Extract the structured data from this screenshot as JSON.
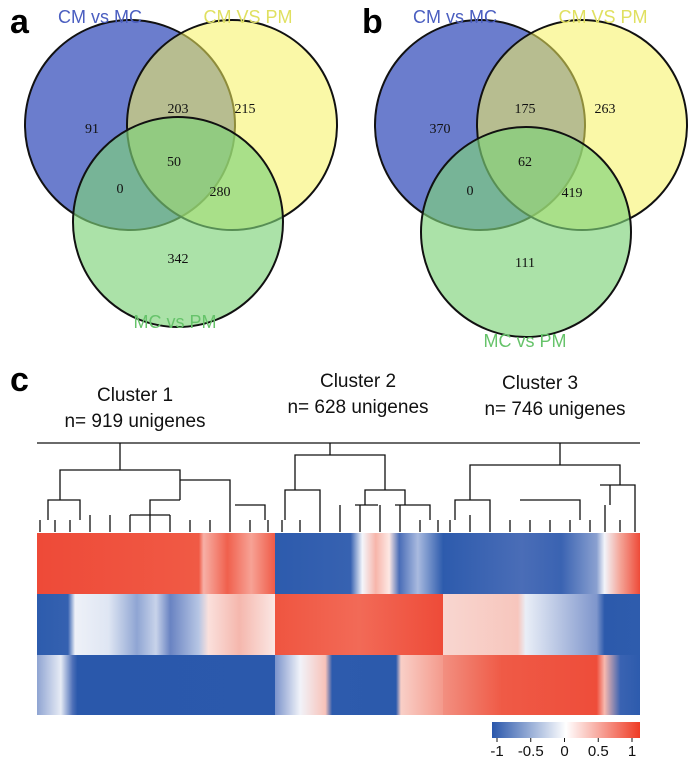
{
  "panel_a": {
    "letter": "a",
    "sets": [
      "CM vs MC",
      "CM VS PM",
      "MC vs PM"
    ],
    "regions": {
      "cm_mc_only": 91,
      "cm_mc_and_cm_pm": 203,
      "cm_pm_only": 215,
      "all_three": 50,
      "cm_mc_and_mc_pm": 0,
      "cm_pm_and_mc_pm": 280,
      "mc_pm_only": 342
    }
  },
  "panel_b": {
    "letter": "b",
    "sets": [
      "CM vs MC",
      "CM VS PM",
      "MC vs PM"
    ],
    "regions": {
      "cm_mc_only": 370,
      "cm_mc_and_cm_pm": 175,
      "cm_pm_only": 263,
      "all_three": 62,
      "cm_mc_and_mc_pm": 0,
      "cm_pm_and_mc_pm": 419,
      "mc_pm_only": 111
    }
  },
  "panel_c": {
    "letter": "c",
    "clusters": [
      {
        "name": "Cluster 1",
        "count": "n= 919 unigenes"
      },
      {
        "name": "Cluster 2",
        "count": "n= 628 unigenes"
      },
      {
        "name": "Cluster 3",
        "count": "n= 746 unigenes"
      }
    ],
    "colorbar_ticks": [
      -1,
      -0.5,
      0,
      0.5,
      1
    ]
  }
}
